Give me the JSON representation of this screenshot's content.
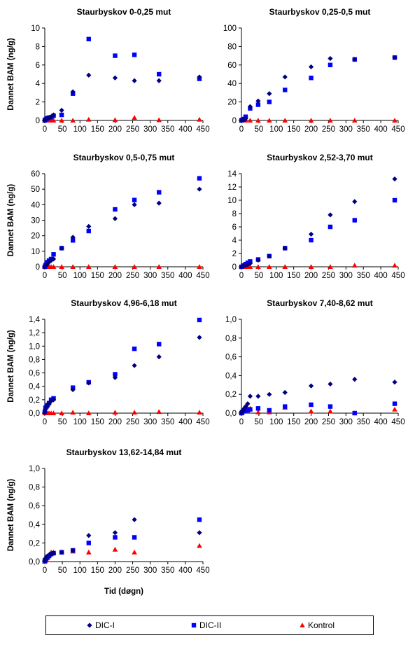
{
  "colors": {
    "DIC-I": "#000080",
    "DIC-II": "#0000ff",
    "Kontrol": "#ff0000"
  },
  "legend": {
    "items": [
      "DIC-I",
      "DIC-II",
      "Kontrol"
    ],
    "placement": "bottom"
  },
  "chart_data": [
    {
      "type": "scatter",
      "title": "Staurbyskov 0-0,25 mut",
      "ylabel": "Dannet BAM (ng/g)",
      "xlabel": "",
      "xlim": [
        0,
        450
      ],
      "ylim": [
        0,
        10
      ],
      "xticks": [
        "0",
        "50",
        "100",
        "150",
        "200",
        "250",
        "300",
        "350",
        "400",
        "450"
      ],
      "yticks": [
        "0",
        "2",
        "4",
        "6",
        "8",
        "10"
      ],
      "series": [
        {
          "name": "DIC-I",
          "x": [
            0,
            2,
            5,
            8,
            12,
            18,
            25,
            48,
            80,
            125,
            200,
            255,
            325,
            440
          ],
          "y": [
            0,
            0.1,
            0.2,
            0.25,
            0.3,
            0.4,
            0.6,
            1.1,
            3.1,
            4.9,
            4.6,
            4.3,
            4.3,
            4.7
          ]
        },
        {
          "name": "DIC-II",
          "x": [
            0,
            2,
            5,
            8,
            12,
            18,
            25,
            48,
            80,
            125,
            200,
            255,
            325,
            440
          ],
          "y": [
            0,
            0.1,
            0.2,
            0.25,
            0.3,
            0.35,
            0.5,
            0.6,
            2.9,
            8.8,
            7.0,
            7.1,
            5.0,
            4.5
          ]
        },
        {
          "name": "Kontrol",
          "x": [
            0,
            2,
            5,
            8,
            12,
            18,
            25,
            48,
            80,
            125,
            200,
            255,
            325,
            440
          ],
          "y": [
            0,
            0,
            0,
            0,
            0,
            0,
            0,
            0,
            0,
            0.1,
            0.05,
            0.3,
            0.05,
            0.1
          ]
        }
      ]
    },
    {
      "type": "scatter",
      "title": "Staurbyskov 0,25-0,5 mut",
      "ylabel": "",
      "xlabel": "",
      "xlim": [
        0,
        450
      ],
      "ylim": [
        0,
        100
      ],
      "xticks": [
        "0",
        "50",
        "100",
        "150",
        "200",
        "250",
        "300",
        "350",
        "400",
        "450"
      ],
      "yticks": [
        "0",
        "20",
        "40",
        "60",
        "80",
        "100"
      ],
      "series": [
        {
          "name": "DIC-I",
          "x": [
            0,
            2,
            5,
            8,
            12,
            25,
            48,
            80,
            125,
            200,
            255,
            325,
            440
          ],
          "y": [
            0,
            0.5,
            1,
            1.5,
            2,
            15,
            21,
            29,
            47,
            58,
            67,
            66,
            68
          ]
        },
        {
          "name": "DIC-II",
          "x": [
            0,
            2,
            5,
            8,
            12,
            25,
            48,
            80,
            125,
            200,
            255,
            325,
            440
          ],
          "y": [
            0,
            0.5,
            1,
            1.5,
            4,
            13,
            17,
            20,
            33,
            46,
            60,
            66,
            68
          ]
        },
        {
          "name": "Kontrol",
          "x": [
            0,
            2,
            5,
            8,
            12,
            25,
            48,
            80,
            125,
            200,
            255,
            325,
            440
          ],
          "y": [
            0,
            0,
            0,
            0,
            0,
            0,
            0,
            0,
            0,
            0,
            0,
            0,
            0
          ]
        }
      ]
    },
    {
      "type": "scatter",
      "title": "Staurbyskov 0,5-0,75 mut",
      "ylabel": "Dannet BAM (ng/g)",
      "xlabel": "",
      "xlim": [
        0,
        450
      ],
      "ylim": [
        0,
        60
      ],
      "xticks": [
        "0",
        "50",
        "100",
        "150",
        "200",
        "250",
        "300",
        "350",
        "400",
        "450"
      ],
      "yticks": [
        "0",
        "10",
        "20",
        "30",
        "40",
        "50",
        "60"
      ],
      "series": [
        {
          "name": "DIC-I",
          "x": [
            0,
            2,
            5,
            8,
            12,
            18,
            25,
            48,
            80,
            125,
            200,
            255,
            325,
            440
          ],
          "y": [
            0,
            0.5,
            1,
            2,
            3,
            4,
            5,
            12,
            19,
            26,
            31,
            40,
            41,
            50
          ]
        },
        {
          "name": "DIC-II",
          "x": [
            0,
            2,
            5,
            8,
            12,
            18,
            25,
            48,
            80,
            125,
            200,
            255,
            325,
            440
          ],
          "y": [
            0,
            1,
            2,
            3,
            4,
            5,
            8,
            12,
            17,
            23,
            37,
            43,
            48,
            57
          ]
        },
        {
          "name": "Kontrol",
          "x": [
            0,
            2,
            5,
            8,
            12,
            18,
            25,
            48,
            80,
            125,
            200,
            255,
            325,
            440
          ],
          "y": [
            0,
            0,
            0,
            0,
            0,
            0,
            0,
            0,
            0,
            0,
            0,
            0,
            0,
            0
          ]
        }
      ]
    },
    {
      "type": "scatter",
      "title": "Staurbyskov 2,52-3,70 mut",
      "ylabel": "",
      "xlabel": "",
      "xlim": [
        0,
        450
      ],
      "ylim": [
        0,
        14
      ],
      "xticks": [
        "0",
        "50",
        "100",
        "150",
        "200",
        "250",
        "300",
        "350",
        "400",
        "450"
      ],
      "yticks": [
        "0",
        "2",
        "4",
        "6",
        "8",
        "10",
        "12",
        "14"
      ],
      "series": [
        {
          "name": "DIC-I",
          "x": [
            0,
            5,
            12,
            18,
            25,
            48,
            80,
            125,
            200,
            255,
            325,
            440
          ],
          "y": [
            0,
            0.1,
            0.2,
            0.3,
            0.5,
            1.0,
            1.6,
            2.8,
            4.9,
            7.8,
            9.8,
            13.2
          ]
        },
        {
          "name": "DIC-II",
          "x": [
            0,
            5,
            12,
            18,
            25,
            48,
            80,
            125,
            200,
            255,
            325,
            440
          ],
          "y": [
            0,
            0.2,
            0.4,
            0.6,
            0.8,
            1.1,
            1.6,
            2.8,
            4.0,
            6.0,
            7.0,
            10.0
          ]
        },
        {
          "name": "Kontrol",
          "x": [
            0,
            5,
            12,
            18,
            25,
            48,
            80,
            125,
            200,
            255,
            325,
            440
          ],
          "y": [
            0,
            0,
            0,
            0,
            0,
            0,
            0,
            0,
            0,
            0,
            0.2,
            0.2
          ]
        }
      ]
    },
    {
      "type": "scatter",
      "title": "Staurbyskov 4,96-6,18 mut",
      "ylabel": "Dannet BAM (ng/g)",
      "xlabel": "",
      "xlim": [
        0,
        450
      ],
      "ylim": [
        0,
        1.4
      ],
      "xticks": [
        "0",
        "50",
        "100",
        "150",
        "200",
        "250",
        "300",
        "350",
        "400",
        "450"
      ],
      "yticks": [
        "0,0",
        "0,2",
        "0,4",
        "0,6",
        "0,8",
        "1,0",
        "1,2",
        "1,4"
      ],
      "series": [
        {
          "name": "DIC-I",
          "x": [
            0,
            2,
            5,
            8,
            12,
            18,
            25,
            80,
            125,
            200,
            255,
            325,
            440
          ],
          "y": [
            0.01,
            0.06,
            0.09,
            0.12,
            0.14,
            0.18,
            0.2,
            0.35,
            0.45,
            0.53,
            0.71,
            0.84,
            1.13
          ]
        },
        {
          "name": "DIC-II",
          "x": [
            0,
            2,
            5,
            8,
            12,
            18,
            25,
            80,
            125,
            200,
            255,
            325,
            440
          ],
          "y": [
            0.02,
            0.08,
            0.1,
            0.12,
            0.15,
            0.2,
            0.22,
            0.38,
            0.46,
            0.58,
            0.96,
            1.03,
            1.39
          ]
        },
        {
          "name": "Kontrol",
          "x": [
            0,
            2,
            5,
            8,
            12,
            18,
            25,
            48,
            80,
            125,
            200,
            255,
            325,
            440
          ],
          "y": [
            0,
            0,
            0,
            0,
            0,
            0,
            0,
            0,
            0.01,
            0,
            0.01,
            0.01,
            0.02,
            0.01
          ]
        }
      ]
    },
    {
      "type": "scatter",
      "title": "Staurbyskov 7,40-8,62 mut",
      "ylabel": "",
      "xlabel": "",
      "xlim": [
        0,
        450
      ],
      "ylim": [
        0,
        1.0
      ],
      "xticks": [
        "0",
        "50",
        "100",
        "150",
        "200",
        "250",
        "300",
        "350",
        "400",
        "450"
      ],
      "yticks": [
        "0,0",
        "0,2",
        "0,4",
        "0,6",
        "0,8",
        "1,0"
      ],
      "series": [
        {
          "name": "DIC-I",
          "x": [
            0,
            2,
            5,
            8,
            12,
            18,
            25,
            48,
            80,
            125,
            200,
            255,
            325,
            440
          ],
          "y": [
            0,
            0.02,
            0.03,
            0.05,
            0.07,
            0.1,
            0.18,
            0.18,
            0.2,
            0.22,
            0.29,
            0.31,
            0.36,
            0.33
          ]
        },
        {
          "name": "DIC-II",
          "x": [
            0,
            2,
            5,
            8,
            12,
            18,
            25,
            48,
            80,
            125,
            200,
            255,
            325,
            440
          ],
          "y": [
            0,
            0.01,
            0.02,
            0.02,
            0.03,
            0.03,
            0.04,
            0.05,
            0.03,
            0.07,
            0.09,
            0.07,
            0,
            0.1
          ]
        },
        {
          "name": "Kontrol",
          "x": [
            0,
            2,
            5,
            8,
            12,
            18,
            25,
            48,
            80,
            125,
            200,
            255,
            325,
            440
          ],
          "y": [
            0,
            0.01,
            0.02,
            0.03,
            0.04,
            0.05,
            0.05,
            0.01,
            0.01,
            0.06,
            0.02,
            0.02,
            0,
            0.04
          ]
        }
      ]
    },
    {
      "type": "scatter",
      "title": "Staurbyskov 13,62-14,84 mut",
      "ylabel": "Dannet BAM (ng/g)",
      "xlabel": "Tid (døgn)",
      "xlim": [
        0,
        450
      ],
      "ylim": [
        0,
        1.0
      ],
      "xticks": [
        "0",
        "50",
        "100",
        "150",
        "200",
        "250",
        "300",
        "350",
        "400",
        "450"
      ],
      "yticks": [
        "0,0",
        "0,2",
        "0,4",
        "0,6",
        "0,8",
        "1,0"
      ],
      "series": [
        {
          "name": "DIC-I",
          "x": [
            0,
            2,
            5,
            8,
            12,
            18,
            25,
            48,
            80,
            125,
            200,
            255,
            440
          ],
          "y": [
            0.01,
            0.03,
            0.05,
            0.06,
            0.07,
            0.08,
            0.09,
            0.1,
            0.12,
            0.28,
            0.31,
            0.45,
            0.31
          ]
        },
        {
          "name": "DIC-II",
          "x": [
            0,
            2,
            5,
            8,
            12,
            18,
            25,
            48,
            80,
            125,
            200,
            255,
            440
          ],
          "y": [
            0.01,
            0.02,
            0.04,
            0.05,
            0.06,
            0.08,
            0.09,
            0.1,
            0.12,
            0.2,
            0.26,
            0.26,
            0.45
          ]
        },
        {
          "name": "Kontrol",
          "x": [
            0,
            2,
            5,
            8,
            12,
            18,
            25,
            48,
            80,
            125,
            200,
            255,
            440
          ],
          "y": [
            0,
            0.01,
            0.02,
            0.04,
            0.07,
            0.1,
            0.1,
            0.1,
            0.11,
            0.1,
            0.13,
            0.1,
            0.17
          ]
        }
      ]
    }
  ]
}
